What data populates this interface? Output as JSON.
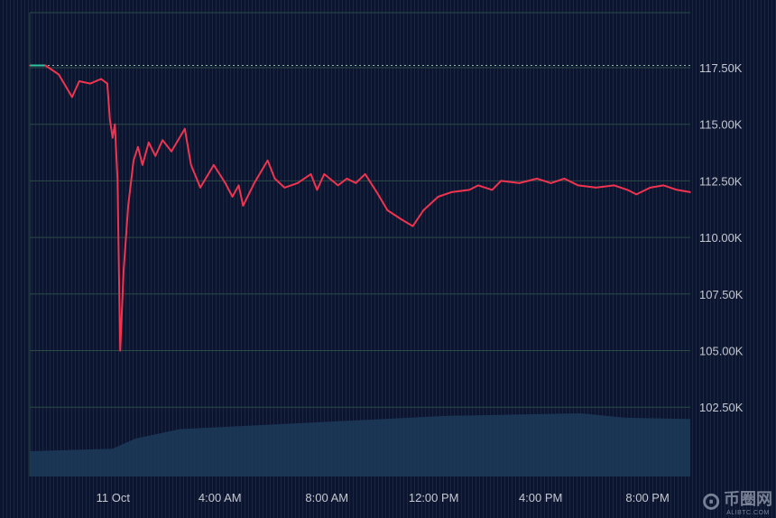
{
  "chart_data": {
    "type": "line",
    "title": "",
    "xlabel": "",
    "ylabel": "",
    "ylim": [
      101500,
      120000
    ],
    "grid": true,
    "y_ticks": [
      {
        "value": 117500,
        "label": "117.50K"
      },
      {
        "value": 115000,
        "label": "115.00K"
      },
      {
        "value": 112500,
        "label": "112.50K"
      },
      {
        "value": 110000,
        "label": "110.00K"
      },
      {
        "value": 107500,
        "label": "107.50K"
      },
      {
        "value": 105000,
        "label": "105.00K"
      },
      {
        "value": 102500,
        "label": "102.50K"
      }
    ],
    "x_ticks": [
      {
        "time": "10-11 00:00",
        "label": "11 Oct"
      },
      {
        "time": "10-11 04:00",
        "label": "4:00 AM"
      },
      {
        "time": "10-11 08:00",
        "label": "8:00 AM"
      },
      {
        "time": "10-11 12:00",
        "label": "12:00 PM"
      },
      {
        "time": "10-11 16:00",
        "label": "4:00 PM"
      },
      {
        "time": "10-11 20:00",
        "label": "8:00 PM"
      }
    ],
    "xlim": [
      "10-10 20:53",
      "10-11 21:36"
    ],
    "reference_line": {
      "value": 117600,
      "style": "dotted"
    },
    "colors": {
      "line_up": "#2ec4a0",
      "line_down": "#f0344f",
      "area": "#1d3a5a",
      "background": "#0b1530"
    },
    "series": [
      {
        "points": [
          [
            "10-10 20:53",
            117600
          ],
          [
            "10-10 21:28",
            117600
          ],
          [
            "10-10 21:58",
            117200
          ],
          [
            "10-10 22:28",
            116200
          ],
          [
            "10-10 22:44",
            116900
          ],
          [
            "10-10 23:09",
            116800
          ],
          [
            "10-10 23:33",
            117000
          ],
          [
            "10-10 23:47",
            116800
          ],
          [
            "10-10 23:53",
            115200
          ],
          [
            "10-10 23:59",
            114400
          ],
          [
            "10-11 00:04",
            115000
          ],
          [
            "10-11 00:10",
            112600
          ],
          [
            "10-11 00:16",
            105000
          ],
          [
            "10-11 00:24",
            108600
          ],
          [
            "10-11 00:34",
            111400
          ],
          [
            "10-11 00:46",
            113400
          ],
          [
            "10-11 00:56",
            114000
          ],
          [
            "10-11 01:06",
            113200
          ],
          [
            "10-11 01:20",
            114200
          ],
          [
            "10-11 01:35",
            113600
          ],
          [
            "10-11 01:51",
            114300
          ],
          [
            "10-11 02:11",
            113800
          ],
          [
            "10-11 02:41",
            114800
          ],
          [
            "10-11 02:55",
            113200
          ],
          [
            "10-11 03:16",
            112200
          ],
          [
            "10-11 03:46",
            113200
          ],
          [
            "10-11 04:12",
            112400
          ],
          [
            "10-11 04:28",
            111800
          ],
          [
            "10-11 04:42",
            112300
          ],
          [
            "10-11 04:52",
            111400
          ],
          [
            "10-11 05:17",
            112400
          ],
          [
            "10-11 05:47",
            113400
          ],
          [
            "10-11 06:03",
            112600
          ],
          [
            "10-11 06:25",
            112200
          ],
          [
            "10-11 06:54",
            112400
          ],
          [
            "10-11 07:24",
            112800
          ],
          [
            "10-11 07:38",
            112100
          ],
          [
            "10-11 07:54",
            112800
          ],
          [
            "10-11 08:25",
            112300
          ],
          [
            "10-11 08:45",
            112600
          ],
          [
            "10-11 09:05",
            112400
          ],
          [
            "10-11 09:26",
            112800
          ],
          [
            "10-11 09:52",
            112000
          ],
          [
            "10-11 10:16",
            111200
          ],
          [
            "10-11 10:47",
            110800
          ],
          [
            "10-11 11:13",
            110500
          ],
          [
            "10-11 11:37",
            111200
          ],
          [
            "10-11 12:10",
            111800
          ],
          [
            "10-11 12:40",
            112000
          ],
          [
            "10-11 13:20",
            112100
          ],
          [
            "10-11 13:40",
            112300
          ],
          [
            "10-11 14:11",
            112100
          ],
          [
            "10-11 14:31",
            112500
          ],
          [
            "10-11 15:12",
            112400
          ],
          [
            "10-11 15:52",
            112600
          ],
          [
            "10-11 16:23",
            112400
          ],
          [
            "10-11 16:53",
            112600
          ],
          [
            "10-11 17:24",
            112300
          ],
          [
            "10-11 18:04",
            112200
          ],
          [
            "10-11 18:45",
            112300
          ],
          [
            "10-11 19:15",
            112100
          ],
          [
            "10-11 19:35",
            111900
          ],
          [
            "10-11 20:06",
            112200
          ],
          [
            "10-11 20:36",
            112300
          ],
          [
            "10-11 21:06",
            112100
          ],
          [
            "10-11 21:36",
            112000
          ]
        ]
      }
    ],
    "area_series": {
      "points": [
        [
          "10-10 20:53",
          0.4
        ],
        [
          "10-10 23:59",
          0.44
        ],
        [
          "10-11 00:50",
          0.6
        ],
        [
          "10-11 02:30",
          0.75
        ],
        [
          "10-11 05:50",
          0.82
        ],
        [
          "10-11 09:10",
          0.89
        ],
        [
          "10-11 12:30",
          0.96
        ],
        [
          "10-11 17:30",
          1.0
        ],
        [
          "10-11 19:10",
          0.93
        ],
        [
          "10-11 21:36",
          0.91
        ]
      ]
    }
  },
  "watermark": {
    "text": "币圈网",
    "sub": "ALIBTC.COM"
  }
}
